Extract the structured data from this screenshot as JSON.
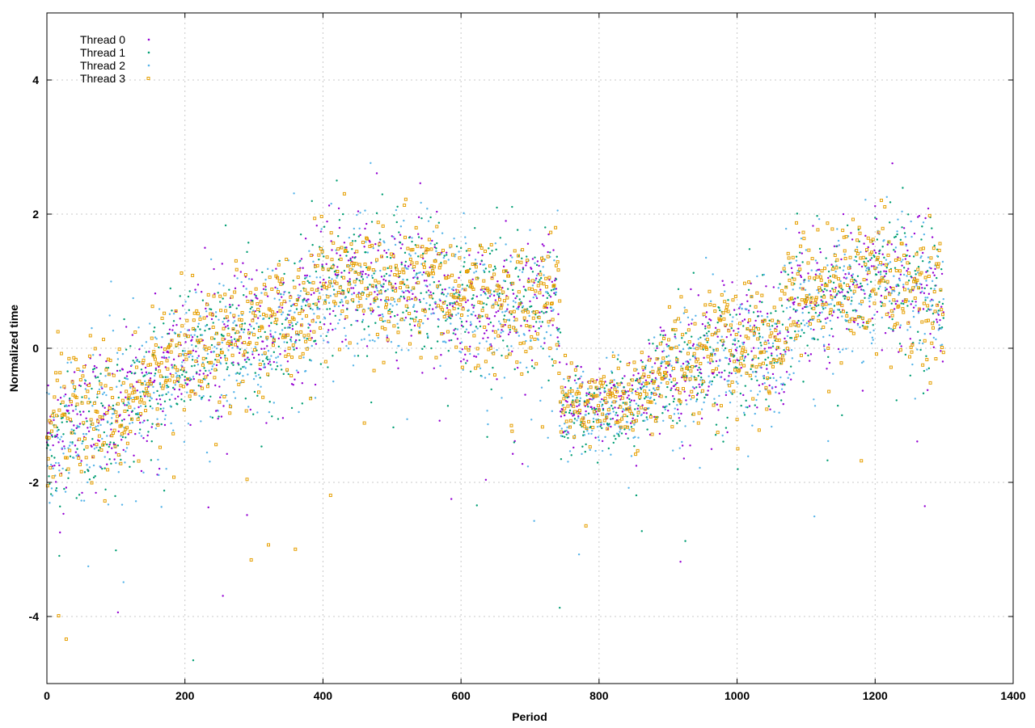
{
  "chart_data": {
    "type": "scatter",
    "title": "",
    "xlabel": "Period",
    "ylabel": "Normalized time",
    "xlim": [
      0,
      1400
    ],
    "ylim": [
      -5,
      5
    ],
    "xticks": [
      0,
      200,
      400,
      600,
      800,
      1000,
      1200,
      1400
    ],
    "yticks": [
      -4,
      -2,
      0,
      2,
      4
    ],
    "grid": true,
    "legend": "top-left",
    "series": [
      {
        "name": "Thread 0",
        "color": "#9400d3",
        "marker": "dot",
        "segments": [
          [
            0,
            -1.25
          ],
          [
            60,
            -1.05
          ],
          [
            100,
            -1.0
          ],
          [
            150,
            -0.5
          ],
          [
            200,
            -0.1
          ],
          [
            300,
            0.3
          ],
          [
            350,
            0.35
          ],
          [
            400,
            0.9
          ],
          [
            450,
            1.1
          ],
          [
            500,
            0.9
          ],
          [
            550,
            0.95
          ],
          [
            600,
            0.65
          ],
          [
            650,
            0.55
          ],
          [
            700,
            0.65
          ],
          [
            740,
            0.75
          ],
          [
            745,
            -0.9
          ],
          [
            800,
            -0.85
          ],
          [
            850,
            -0.7
          ],
          [
            900,
            -0.25
          ],
          [
            1000,
            0.05
          ],
          [
            1060,
            0.05
          ],
          [
            1080,
            0.7
          ],
          [
            1150,
            0.85
          ],
          [
            1200,
            1.1
          ],
          [
            1260,
            0.9
          ],
          [
            1300,
            0.8
          ]
        ],
        "spread": 0.9
      },
      {
        "name": "Thread 1",
        "color": "#009e73",
        "marker": "dot",
        "segments": [
          [
            0,
            -1.3
          ],
          [
            60,
            -1.1
          ],
          [
            100,
            -1.05
          ],
          [
            150,
            -0.55
          ],
          [
            200,
            -0.15
          ],
          [
            300,
            0.25
          ],
          [
            350,
            0.3
          ],
          [
            400,
            0.85
          ],
          [
            450,
            1.1
          ],
          [
            500,
            0.95
          ],
          [
            550,
            1.0
          ],
          [
            600,
            0.7
          ],
          [
            650,
            0.6
          ],
          [
            700,
            0.7
          ],
          [
            740,
            0.8
          ],
          [
            745,
            -0.95
          ],
          [
            800,
            -0.9
          ],
          [
            850,
            -0.8
          ],
          [
            900,
            -0.3
          ],
          [
            1000,
            0.0
          ],
          [
            1060,
            0.0
          ],
          [
            1080,
            0.65
          ],
          [
            1150,
            0.8
          ],
          [
            1200,
            1.15
          ],
          [
            1260,
            0.95
          ],
          [
            1300,
            0.75
          ]
        ],
        "spread": 0.95
      },
      {
        "name": "Thread 2",
        "color": "#56b4e9",
        "marker": "dot",
        "segments": [
          [
            0,
            -1.35
          ],
          [
            60,
            -1.15
          ],
          [
            100,
            -1.1
          ],
          [
            150,
            -0.6
          ],
          [
            200,
            -0.2
          ],
          [
            300,
            0.2
          ],
          [
            350,
            0.25
          ],
          [
            400,
            0.8
          ],
          [
            450,
            1.0
          ],
          [
            500,
            0.85
          ],
          [
            550,
            0.95
          ],
          [
            600,
            0.6
          ],
          [
            650,
            0.55
          ],
          [
            700,
            0.6
          ],
          [
            740,
            0.7
          ],
          [
            745,
            -1.0
          ],
          [
            800,
            -1.0
          ],
          [
            850,
            -0.9
          ],
          [
            900,
            -0.35
          ],
          [
            1000,
            -0.05
          ],
          [
            1060,
            -0.05
          ],
          [
            1080,
            0.6
          ],
          [
            1150,
            0.75
          ],
          [
            1200,
            1.05
          ],
          [
            1260,
            0.9
          ],
          [
            1300,
            0.7
          ]
        ],
        "spread": 1.0
      },
      {
        "name": "Thread 3",
        "color": "#e69f00",
        "marker": "square",
        "segments": [
          [
            0,
            -1.2
          ],
          [
            60,
            -1.0
          ],
          [
            100,
            -0.95
          ],
          [
            150,
            -0.45
          ],
          [
            200,
            -0.05
          ],
          [
            300,
            0.35
          ],
          [
            350,
            0.4
          ],
          [
            400,
            0.95
          ],
          [
            450,
            1.05
          ],
          [
            500,
            0.9
          ],
          [
            550,
            1.0
          ],
          [
            600,
            0.7
          ],
          [
            650,
            0.6
          ],
          [
            700,
            0.7
          ],
          [
            740,
            0.8
          ],
          [
            745,
            -0.85
          ],
          [
            800,
            -0.8
          ],
          [
            850,
            -0.75
          ],
          [
            900,
            -0.2
          ],
          [
            1000,
            0.1
          ],
          [
            1060,
            0.1
          ],
          [
            1080,
            0.75
          ],
          [
            1150,
            0.9
          ],
          [
            1200,
            1.05
          ],
          [
            1260,
            0.85
          ],
          [
            1300,
            0.8
          ]
        ],
        "spread": 0.85
      }
    ],
    "n_points_per_series": 1300
  }
}
